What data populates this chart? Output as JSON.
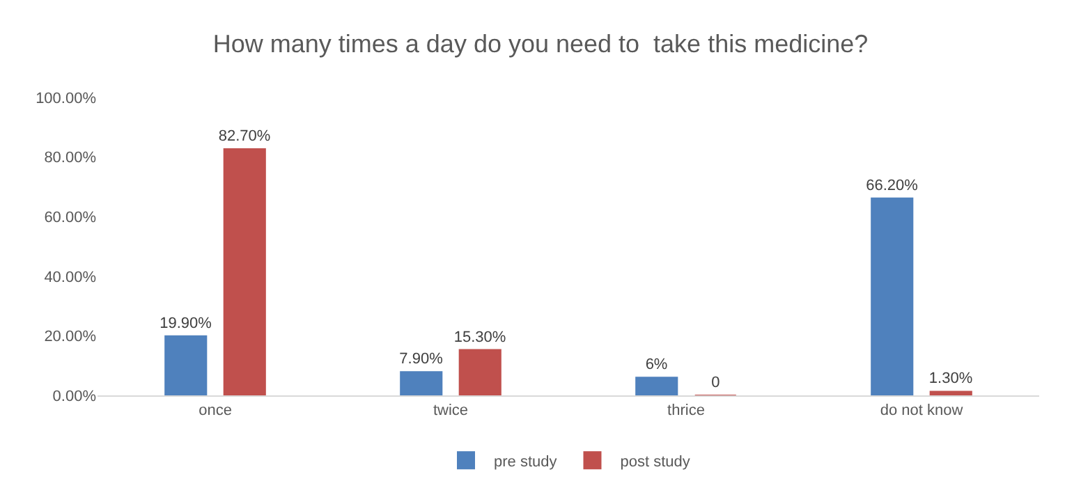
{
  "chart_data": {
    "type": "bar",
    "title": "How many times a day do you need to  take this medicine?",
    "categories": [
      "once",
      "twice",
      "thrice",
      "do not know"
    ],
    "series": [
      {
        "name": "pre study",
        "color": "#4f81bd",
        "values": [
          19.9,
          7.9,
          6,
          66.2
        ],
        "value_labels": [
          "19.90%",
          "7.90%",
          "6%",
          "66.20%"
        ]
      },
      {
        "name": "post study",
        "color": "#c0504d",
        "values": [
          82.7,
          15.3,
          0,
          1.3
        ],
        "value_labels": [
          "82.70%",
          "15.30%",
          "0",
          "1.30%"
        ]
      }
    ],
    "ylim": [
      0,
      100
    ],
    "yticks": [
      {
        "value": 0,
        "label": "0.00%"
      },
      {
        "value": 20,
        "label": "20.00%"
      },
      {
        "value": 40,
        "label": "40.00%"
      },
      {
        "value": 60,
        "label": "60.00%"
      },
      {
        "value": 80,
        "label": "80.00%"
      },
      {
        "value": 100,
        "label": "100.00%"
      }
    ],
    "legend": "bottom"
  }
}
